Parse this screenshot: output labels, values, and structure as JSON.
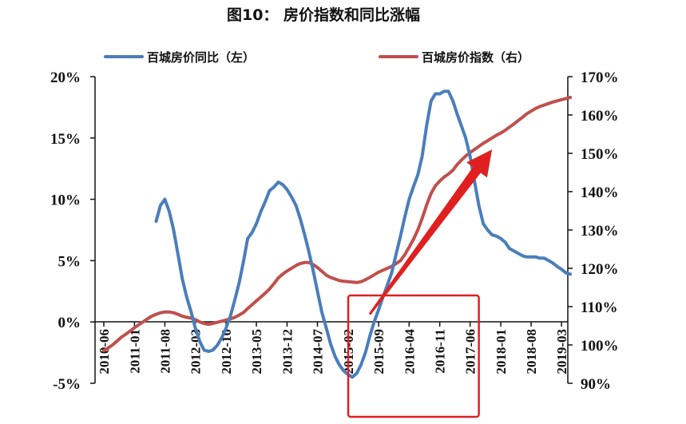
{
  "figure": {
    "title": "图10：   房价指数和同比涨幅"
  },
  "chart_data": {
    "type": "line",
    "title": "图10：   房价指数和同比涨幅",
    "x_ticks": [
      "2010-06",
      "2011-01",
      "2011-08",
      "2012-03",
      "2012-10",
      "2013-05",
      "2013-12",
      "2014-07",
      "2015-02",
      "2015-09",
      "2016-04",
      "2016-11",
      "2017-06",
      "2018-01",
      "2018-08",
      "2019-03"
    ],
    "y_left": {
      "ticks": [
        "-5%",
        "0%",
        "5%",
        "10%",
        "15%",
        "20%"
      ],
      "lim": [
        -5,
        20
      ],
      "unit": "%"
    },
    "y_right": {
      "ticks": [
        "90%",
        "100%",
        "110%",
        "120%",
        "130%",
        "140%",
        "150%",
        "160%",
        "170%"
      ],
      "lim": [
        90,
        170
      ],
      "unit": "%"
    },
    "legend_position": "top",
    "grid": false,
    "series": [
      {
        "name": "百城房价同比（左）",
        "axis": "left",
        "color": "#4a7ebb",
        "points": [
          [
            "2011-06",
            8.2
          ],
          [
            "2011-07",
            9.5
          ],
          [
            "2011-08",
            10.0
          ],
          [
            "2011-09",
            9.0
          ],
          [
            "2011-10",
            7.5
          ],
          [
            "2011-11",
            5.5
          ],
          [
            "2011-12",
            3.5
          ],
          [
            "2012-01",
            2.0
          ],
          [
            "2012-02",
            0.8
          ],
          [
            "2012-03",
            -0.5
          ],
          [
            "2012-04",
            -1.6
          ],
          [
            "2012-05",
            -2.3
          ],
          [
            "2012-06",
            -2.4
          ],
          [
            "2012-07",
            -2.3
          ],
          [
            "2012-08",
            -1.9
          ],
          [
            "2012-09",
            -1.3
          ],
          [
            "2012-10",
            -0.5
          ],
          [
            "2012-11",
            0.5
          ],
          [
            "2012-12",
            1.8
          ],
          [
            "2013-01",
            3.2
          ],
          [
            "2013-02",
            5.0
          ],
          [
            "2013-03",
            6.8
          ],
          [
            "2013-04",
            7.3
          ],
          [
            "2013-05",
            8.0
          ],
          [
            "2013-06",
            9.0
          ],
          [
            "2013-07",
            9.8
          ],
          [
            "2013-08",
            10.7
          ],
          [
            "2013-09",
            11.0
          ],
          [
            "2013-10",
            11.4
          ],
          [
            "2013-11",
            11.2
          ],
          [
            "2013-12",
            10.8
          ],
          [
            "2014-01",
            10.2
          ],
          [
            "2014-02",
            9.5
          ],
          [
            "2014-03",
            8.5
          ],
          [
            "2014-04",
            7.2
          ],
          [
            "2014-05",
            5.8
          ],
          [
            "2014-06",
            4.2
          ],
          [
            "2014-07",
            2.5
          ],
          [
            "2014-08",
            0.8
          ],
          [
            "2014-09",
            -0.5
          ],
          [
            "2014-10",
            -1.8
          ],
          [
            "2014-11",
            -2.8
          ],
          [
            "2014-12",
            -3.5
          ],
          [
            "2015-01",
            -4.0
          ],
          [
            "2015-02",
            -4.3
          ],
          [
            "2015-03",
            -4.5
          ],
          [
            "2015-04",
            -4.2
          ],
          [
            "2015-05",
            -3.5
          ],
          [
            "2015-06",
            -2.5
          ],
          [
            "2015-07",
            -1.2
          ],
          [
            "2015-08",
            0.0
          ],
          [
            "2015-09",
            1.0
          ],
          [
            "2015-10",
            2.0
          ],
          [
            "2015-11",
            3.0
          ],
          [
            "2015-12",
            4.0
          ],
          [
            "2016-01",
            5.5
          ],
          [
            "2016-02",
            7.0
          ],
          [
            "2016-03",
            8.5
          ],
          [
            "2016-04",
            10.0
          ],
          [
            "2016-05",
            11.0
          ],
          [
            "2016-06",
            12.0
          ],
          [
            "2016-07",
            13.5
          ],
          [
            "2016-08",
            16.0
          ],
          [
            "2016-09",
            18.0
          ],
          [
            "2016-10",
            18.6
          ],
          [
            "2016-11",
            18.6
          ],
          [
            "2016-12",
            18.8
          ],
          [
            "2017-01",
            18.8
          ],
          [
            "2017-02",
            18.0
          ],
          [
            "2017-03",
            17.0
          ],
          [
            "2017-04",
            16.0
          ],
          [
            "2017-05",
            15.0
          ],
          [
            "2017-06",
            13.5
          ],
          [
            "2017-07",
            11.5
          ],
          [
            "2017-08",
            9.5
          ],
          [
            "2017-09",
            8.0
          ],
          [
            "2017-10",
            7.5
          ],
          [
            "2017-11",
            7.1
          ],
          [
            "2017-12",
            7.0
          ],
          [
            "2018-01",
            6.8
          ],
          [
            "2018-02",
            6.5
          ],
          [
            "2018-03",
            6.0
          ],
          [
            "2018-04",
            5.8
          ],
          [
            "2018-05",
            5.6
          ],
          [
            "2018-06",
            5.4
          ],
          [
            "2018-07",
            5.3
          ],
          [
            "2018-08",
            5.3
          ],
          [
            "2018-09",
            5.3
          ],
          [
            "2018-10",
            5.2
          ],
          [
            "2018-11",
            5.2
          ],
          [
            "2018-12",
            5.0
          ],
          [
            "2019-01",
            4.8
          ],
          [
            "2019-02",
            4.5
          ],
          [
            "2019-03",
            4.3
          ],
          [
            "2019-04",
            4.0
          ],
          [
            "2019-05",
            3.9
          ]
        ]
      },
      {
        "name": "百城房价指数（右）",
        "axis": "right",
        "color": "#c0504d",
        "points": [
          [
            "2010-06",
            98.5
          ],
          [
            "2010-07",
            99.2
          ],
          [
            "2010-08",
            100.0
          ],
          [
            "2010-09",
            101.0
          ],
          [
            "2010-10",
            102.0
          ],
          [
            "2010-11",
            102.8
          ],
          [
            "2010-12",
            103.6
          ],
          [
            "2011-01",
            104.5
          ],
          [
            "2011-02",
            105.3
          ],
          [
            "2011-03",
            106.0
          ],
          [
            "2011-04",
            106.8
          ],
          [
            "2011-05",
            107.5
          ],
          [
            "2011-06",
            108.0
          ],
          [
            "2011-07",
            108.4
          ],
          [
            "2011-08",
            108.6
          ],
          [
            "2011-09",
            108.6
          ],
          [
            "2011-10",
            108.4
          ],
          [
            "2011-11",
            108.0
          ],
          [
            "2011-12",
            107.5
          ],
          [
            "2012-01",
            107.2
          ],
          [
            "2012-02",
            107.0
          ],
          [
            "2012-03",
            106.6
          ],
          [
            "2012-04",
            106.0
          ],
          [
            "2012-05",
            105.6
          ],
          [
            "2012-06",
            105.4
          ],
          [
            "2012-07",
            105.6
          ],
          [
            "2012-08",
            105.9
          ],
          [
            "2012-09",
            106.2
          ],
          [
            "2012-10",
            106.5
          ],
          [
            "2012-11",
            106.8
          ],
          [
            "2012-12",
            107.2
          ],
          [
            "2013-01",
            107.8
          ],
          [
            "2013-02",
            108.5
          ],
          [
            "2013-03",
            109.5
          ],
          [
            "2013-04",
            110.5
          ],
          [
            "2013-05",
            111.5
          ],
          [
            "2013-06",
            112.5
          ],
          [
            "2013-07",
            113.5
          ],
          [
            "2013-08",
            114.6
          ],
          [
            "2013-09",
            116.0
          ],
          [
            "2013-10",
            117.5
          ],
          [
            "2013-11",
            118.5
          ],
          [
            "2013-12",
            119.3
          ],
          [
            "2014-01",
            120.0
          ],
          [
            "2014-02",
            120.7
          ],
          [
            "2014-03",
            121.2
          ],
          [
            "2014-04",
            121.5
          ],
          [
            "2014-05",
            121.5
          ],
          [
            "2014-06",
            121.0
          ],
          [
            "2014-07",
            120.2
          ],
          [
            "2014-08",
            119.2
          ],
          [
            "2014-09",
            118.2
          ],
          [
            "2014-10",
            117.6
          ],
          [
            "2014-11",
            117.2
          ],
          [
            "2014-12",
            116.8
          ],
          [
            "2015-01",
            116.6
          ],
          [
            "2015-02",
            116.5
          ],
          [
            "2015-03",
            116.4
          ],
          [
            "2015-04",
            116.3
          ],
          [
            "2015-05",
            116.5
          ],
          [
            "2015-06",
            117.0
          ],
          [
            "2015-07",
            117.6
          ],
          [
            "2015-08",
            118.3
          ],
          [
            "2015-09",
            119.0
          ],
          [
            "2015-10",
            119.5
          ],
          [
            "2015-11",
            120.0
          ],
          [
            "2015-12",
            120.5
          ],
          [
            "2016-01",
            121.2
          ],
          [
            "2016-02",
            122.0
          ],
          [
            "2016-03",
            123.5
          ],
          [
            "2016-04",
            125.5
          ],
          [
            "2016-05",
            127.5
          ],
          [
            "2016-06",
            130.0
          ],
          [
            "2016-07",
            133.0
          ],
          [
            "2016-08",
            136.5
          ],
          [
            "2016-09",
            139.5
          ],
          [
            "2016-10",
            141.5
          ],
          [
            "2016-11",
            142.8
          ],
          [
            "2016-12",
            143.8
          ],
          [
            "2017-01",
            144.6
          ],
          [
            "2017-02",
            145.6
          ],
          [
            "2017-03",
            147.0
          ],
          [
            "2017-04",
            148.2
          ],
          [
            "2017-05",
            149.3
          ],
          [
            "2017-06",
            150.2
          ],
          [
            "2017-07",
            151.0
          ],
          [
            "2017-08",
            151.8
          ],
          [
            "2017-09",
            152.6
          ],
          [
            "2017-10",
            153.3
          ],
          [
            "2017-11",
            154.0
          ],
          [
            "2017-12",
            154.7
          ],
          [
            "2018-01",
            155.3
          ],
          [
            "2018-02",
            156.0
          ],
          [
            "2018-03",
            156.8
          ],
          [
            "2018-04",
            157.6
          ],
          [
            "2018-05",
            158.5
          ],
          [
            "2018-06",
            159.4
          ],
          [
            "2018-07",
            160.3
          ],
          [
            "2018-08",
            161.0
          ],
          [
            "2018-09",
            161.7
          ],
          [
            "2018-10",
            162.2
          ],
          [
            "2018-11",
            162.6
          ],
          [
            "2018-12",
            163.0
          ],
          [
            "2019-01",
            163.4
          ],
          [
            "2019-02",
            163.7
          ],
          [
            "2019-03",
            164.0
          ],
          [
            "2019-04",
            164.3
          ],
          [
            "2019-05",
            164.6
          ]
        ]
      }
    ],
    "annotations": [
      {
        "type": "rectangle",
        "color": "#e02020",
        "x_range": [
          "2015-02",
          "2017-08"
        ]
      },
      {
        "type": "arrow",
        "color": "#e02020",
        "from": [
          "2015-07",
          108
        ],
        "to": [
          "2017-11",
          151
        ]
      }
    ]
  }
}
